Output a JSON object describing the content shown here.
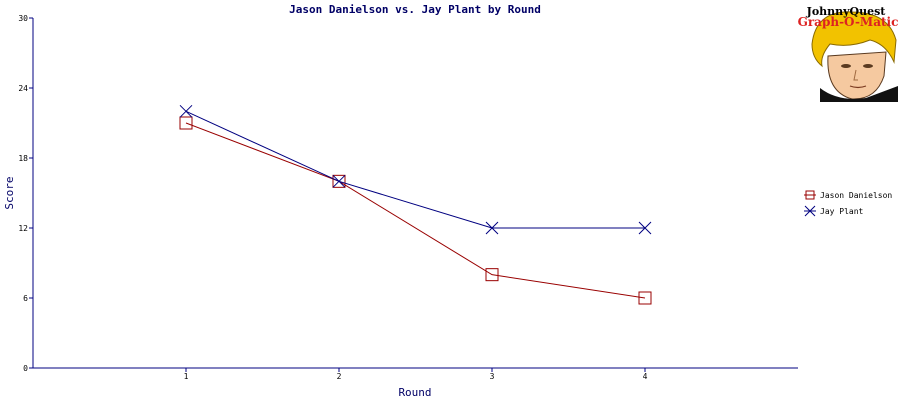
{
  "logo": {
    "line1": "JohnnyQuest",
    "line2": "Graph-O-Matic"
  },
  "chart_data": {
    "type": "line",
    "title": "Jason Danielson vs. Jay Plant by Round",
    "xlabel": "Round",
    "ylabel": "Score",
    "categories": [
      "1",
      "2",
      "3",
      "4"
    ],
    "x": [
      1,
      2,
      3,
      4
    ],
    "xlim": [
      0,
      5
    ],
    "ylim": [
      0,
      30
    ],
    "yticks": [
      0,
      6,
      12,
      18,
      24,
      30
    ],
    "grid": false,
    "legend_position": "right",
    "series": [
      {
        "name": "Jason Danielson",
        "values": [
          21,
          16,
          8,
          6
        ],
        "color": "#990000",
        "marker": "square"
      },
      {
        "name": "Jay Plant",
        "values": [
          22,
          16,
          12,
          12
        ],
        "color": "#000080",
        "marker": "x"
      }
    ]
  }
}
